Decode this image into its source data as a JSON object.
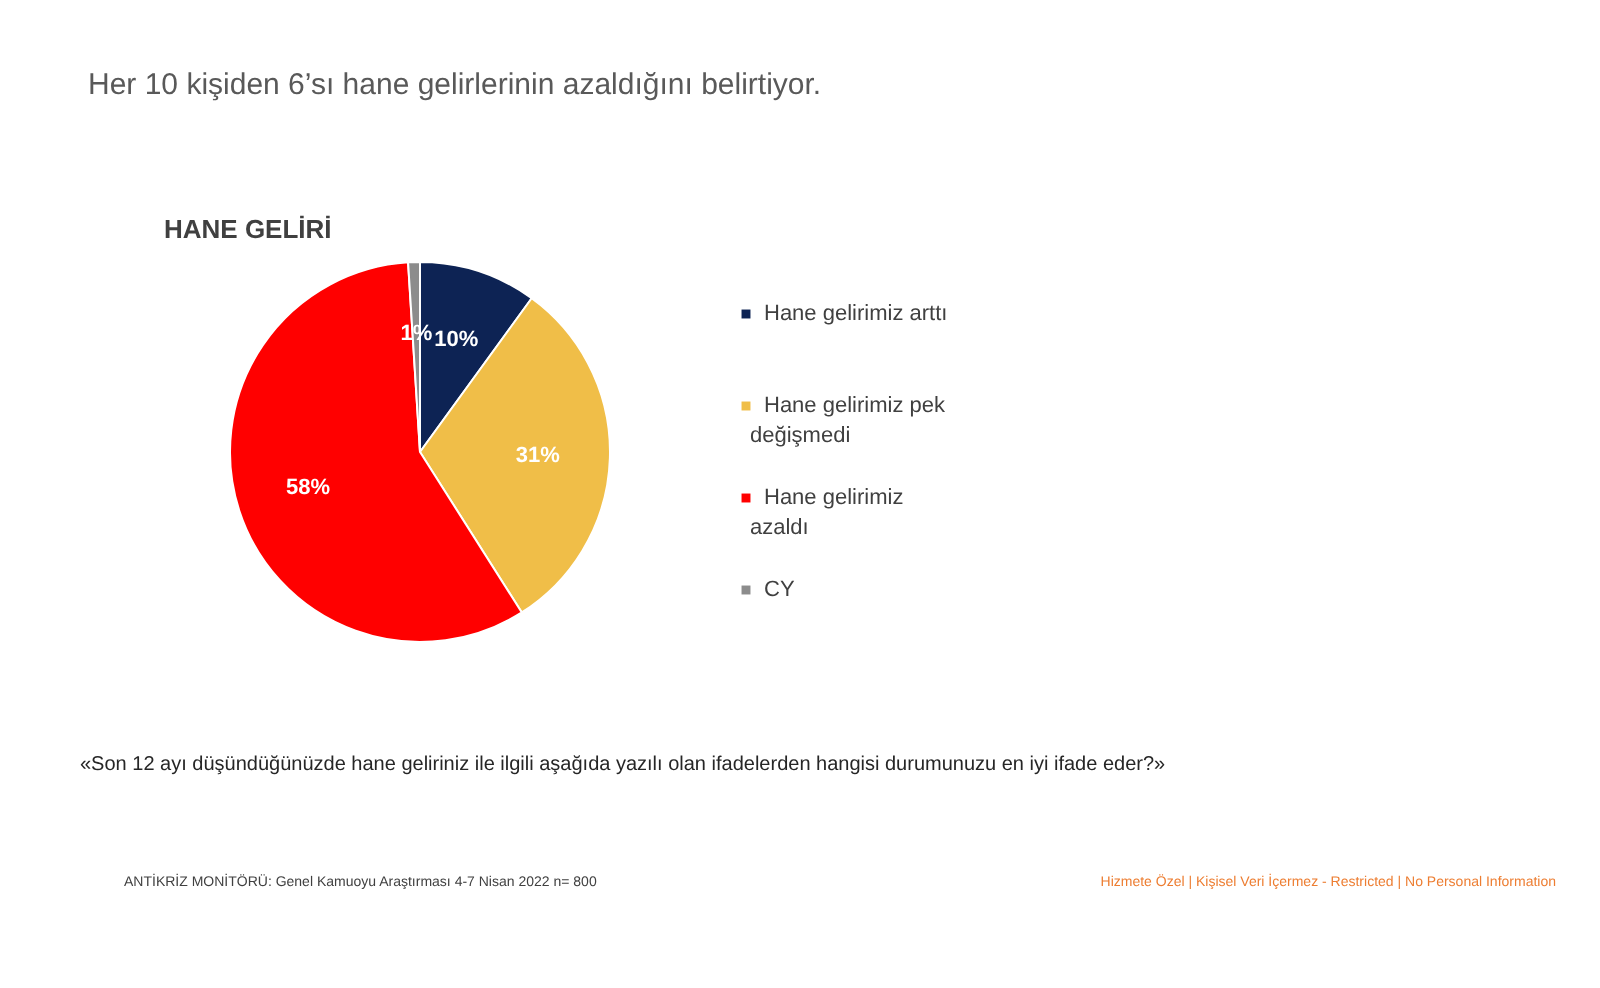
{
  "chart_data": {
    "type": "pie",
    "title": "Her 10 kişiden 6’sı hane gelirlerinin azaldığını belirtiyor.",
    "subtitle": "HANE GELİRİ",
    "categories": [
      "Hane gelirimiz arttı",
      "Hane gelirimiz pek değişmedi",
      "Hane gelirimiz azaldı",
      "CY"
    ],
    "values": [
      10,
      31,
      58,
      1
    ],
    "colors": [
      "#0d2354",
      "#f0be48",
      "#ff0000",
      "#8c8c8c"
    ],
    "value_labels": [
      "10%",
      "31%",
      "58%",
      "1%"
    ],
    "legend": "right",
    "annotations": [
      "«Son 12 ayı düşündüğünüzde hane geliriniz ile ilgili aşağıda yazılı olan ifadelerden hangisi durumunuzu en iyi ifade eder?»",
      "ANTİKRİZ MONİTÖRÜ:  Genel Kamuoyu Araştırması  4-7 Nisan 2022 n= 800",
      "Hizmete Özel | Kişisel Veri İçermez - Restricted | No Personal Information"
    ]
  }
}
